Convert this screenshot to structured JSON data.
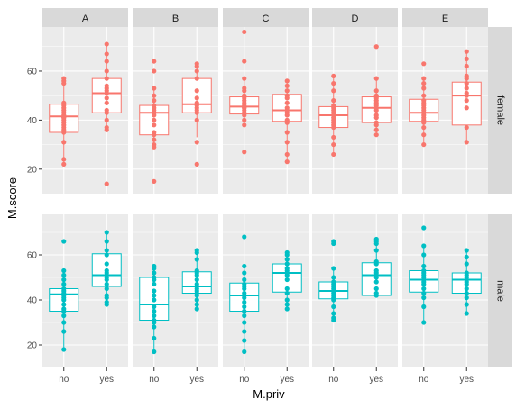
{
  "chart_data": {
    "type": "boxplot",
    "xlabel": "M.priv",
    "ylabel": "M.score",
    "x_categories": [
      "no",
      "yes"
    ],
    "col_facets": [
      "A",
      "B",
      "C",
      "D",
      "E"
    ],
    "row_facets": [
      "female",
      "male"
    ],
    "ylim": [
      10,
      78
    ],
    "y_ticks": [
      20,
      40,
      60
    ],
    "grid": true,
    "colors": {
      "female": "#F8766D",
      "male": "#00BFC4",
      "panel_bg": "#EBEBEB",
      "strip_bg": "#D9D9D9",
      "grid": "#FFFFFF"
    },
    "panels": [
      {
        "row": "female",
        "col": "A",
        "groups": [
          {
            "x": "no",
            "box": {
              "min": 22,
              "q1": 35,
              "median": 41.5,
              "q3": 46.5,
              "max": 57
            },
            "points": [
              22,
              24,
              31,
              35,
              36,
              37,
              38,
              39,
              40,
              41,
              41,
              42,
              43,
              44,
              45,
              46,
              47,
              55,
              56,
              57
            ]
          },
          {
            "x": "yes",
            "box": {
              "min": 36,
              "q1": 43,
              "median": 51,
              "q3": 57,
              "max": 71
            },
            "points": [
              14,
              36,
              37,
              40,
              43,
              44,
              47,
              49,
              51,
              52,
              53,
              54,
              57,
              60,
              64,
              67,
              71
            ]
          }
        ]
      },
      {
        "row": "female",
        "col": "B",
        "groups": [
          {
            "x": "no",
            "box": {
              "min": 29,
              "q1": 34,
              "median": 43,
              "q3": 46,
              "max": 53
            },
            "points": [
              15,
              29,
              30,
              32,
              34,
              35,
              38,
              40,
              42,
              43,
              43,
              44,
              45,
              46,
              48,
              50,
              53,
              60,
              64
            ]
          },
          {
            "x": "yes",
            "box": {
              "min": 33,
              "q1": 43,
              "median": 46.5,
              "q3": 57,
              "max": 63
            },
            "points": [
              22,
              31,
              40,
              43,
              44,
              45,
              46,
              47,
              49,
              52,
              57,
              60,
              62,
              63
            ]
          }
        ]
      },
      {
        "row": "female",
        "col": "C",
        "groups": [
          {
            "x": "no",
            "box": {
              "min": 38,
              "q1": 42.5,
              "median": 45.5,
              "q3": 49.5,
              "max": 57
            },
            "points": [
              27,
              38,
              40,
              42,
              43,
              44,
              45,
              45,
              46,
              47,
              48,
              49,
              50,
              52,
              53,
              57,
              64,
              76
            ]
          },
          {
            "x": "yes",
            "box": {
              "min": 23,
              "q1": 39.5,
              "median": 44,
              "q3": 50.5,
              "max": 56
            },
            "points": [
              23,
              26,
              31,
              35,
              39,
              40,
              42,
              43,
              44,
              45,
              47,
              49,
              50,
              52,
              54,
              56
            ]
          }
        ]
      },
      {
        "row": "female",
        "col": "D",
        "groups": [
          {
            "x": "no",
            "box": {
              "min": 26,
              "q1": 37,
              "median": 42,
              "q3": 45.5,
              "max": 58
            },
            "points": [
              26,
              30,
              33,
              37,
              38,
              39,
              40,
              41,
              42,
              43,
              44,
              45,
              46,
              48,
              52,
              55,
              58
            ]
          },
          {
            "x": "yes",
            "box": {
              "min": 34,
              "q1": 39,
              "median": 45,
              "q3": 49.5,
              "max": 57
            },
            "points": [
              34,
              36,
              38,
              39,
              41,
              42,
              44,
              45,
              46,
              47,
              48,
              49,
              50,
              52,
              57,
              70
            ]
          }
        ]
      },
      {
        "row": "female",
        "col": "E",
        "groups": [
          {
            "x": "no",
            "box": {
              "min": 30,
              "q1": 39.5,
              "median": 43,
              "q3": 48.5,
              "max": 57
            },
            "points": [
              30,
              34,
              37,
              39,
              40,
              41,
              42,
              43,
              43,
              44,
              45,
              46,
              47,
              48,
              50,
              53,
              55,
              57,
              63
            ]
          },
          {
            "x": "yes",
            "box": {
              "min": 31,
              "q1": 38,
              "median": 50,
              "q3": 55.5,
              "max": 68
            },
            "points": [
              31,
              37,
              45,
              48,
              50,
              51,
              53,
              55,
              57,
              58,
              62,
              65,
              68
            ]
          }
        ]
      },
      {
        "row": "male",
        "col": "A",
        "groups": [
          {
            "x": "no",
            "box": {
              "min": 18,
              "q1": 35,
              "median": 42.5,
              "q3": 45,
              "max": 53
            },
            "points": [
              18,
              26,
              30,
              33,
              35,
              36,
              38,
              40,
              41,
              42,
              43,
              44,
              45,
              47,
              49,
              51,
              53,
              66
            ]
          },
          {
            "x": "yes",
            "box": {
              "min": 38,
              "q1": 46,
              "median": 51,
              "q3": 60.5,
              "max": 70
            },
            "points": [
              38,
              39,
              41,
              42,
              45,
              47,
              49,
              50,
              51,
              52,
              53,
              56,
              60,
              62,
              66,
              70
            ]
          }
        ]
      },
      {
        "row": "male",
        "col": "B",
        "groups": [
          {
            "x": "no",
            "box": {
              "min": 17,
              "q1": 31,
              "median": 38,
              "q3": 50,
              "max": 55
            },
            "points": [
              17,
              23,
              28,
              30,
              31,
              33,
              35,
              37,
              40,
              42,
              44,
              47,
              49,
              50,
              52,
              54,
              55
            ]
          },
          {
            "x": "yes",
            "box": {
              "min": 36,
              "q1": 43,
              "median": 46,
              "q3": 52.5,
              "max": 62
            },
            "points": [
              36,
              38,
              40,
              42,
              43,
              44,
              45,
              46,
              47,
              49,
              51,
              52,
              53,
              58,
              61,
              62
            ]
          }
        ]
      },
      {
        "row": "male",
        "col": "C",
        "groups": [
          {
            "x": "no",
            "box": {
              "min": 17,
              "q1": 35,
              "median": 42,
              "q3": 47.5,
              "max": 55
            },
            "points": [
              17,
              22,
              26,
              30,
              33,
              35,
              37,
              39,
              41,
              42,
              43,
              45,
              46,
              47,
              49,
              52,
              55,
              68
            ]
          },
          {
            "x": "yes",
            "box": {
              "min": 36,
              "q1": 43.5,
              "median": 52,
              "q3": 56,
              "max": 61
            },
            "points": [
              36,
              38,
              40,
              43,
              45,
              49,
              51,
              52,
              53,
              54,
              56,
              58,
              60,
              61
            ]
          }
        ]
      },
      {
        "row": "male",
        "col": "D",
        "groups": [
          {
            "x": "no",
            "box": {
              "min": 31,
              "q1": 40.5,
              "median": 44,
              "q3": 48,
              "max": 54
            },
            "points": [
              31,
              32,
              34,
              37,
              40,
              41,
              42,
              43,
              44,
              45,
              46,
              47,
              48,
              50,
              54,
              65,
              66
            ]
          },
          {
            "x": "yes",
            "box": {
              "min": 42,
              "q1": 42,
              "median": 51,
              "q3": 56.5,
              "max": 66
            },
            "points": [
              42,
              43,
              45,
              48,
              50,
              51,
              52,
              53,
              56,
              57,
              62,
              65,
              66,
              67
            ]
          }
        ]
      },
      {
        "row": "male",
        "col": "E",
        "groups": [
          {
            "x": "no",
            "box": {
              "min": 30,
              "q1": 43.5,
              "median": 49,
              "q3": 53,
              "max": 64
            },
            "points": [
              30,
              37,
              41,
              43,
              45,
              47,
              48,
              49,
              50,
              51,
              52,
              53,
              55,
              60,
              64,
              72
            ]
          },
          {
            "x": "yes",
            "box": {
              "min": 34,
              "q1": 43,
              "median": 49,
              "q3": 52,
              "max": 62
            },
            "points": [
              34,
              38,
              41,
              43,
              45,
              47,
              48,
              49,
              50,
              51,
              52,
              56,
              59,
              62
            ]
          }
        ]
      }
    ]
  }
}
